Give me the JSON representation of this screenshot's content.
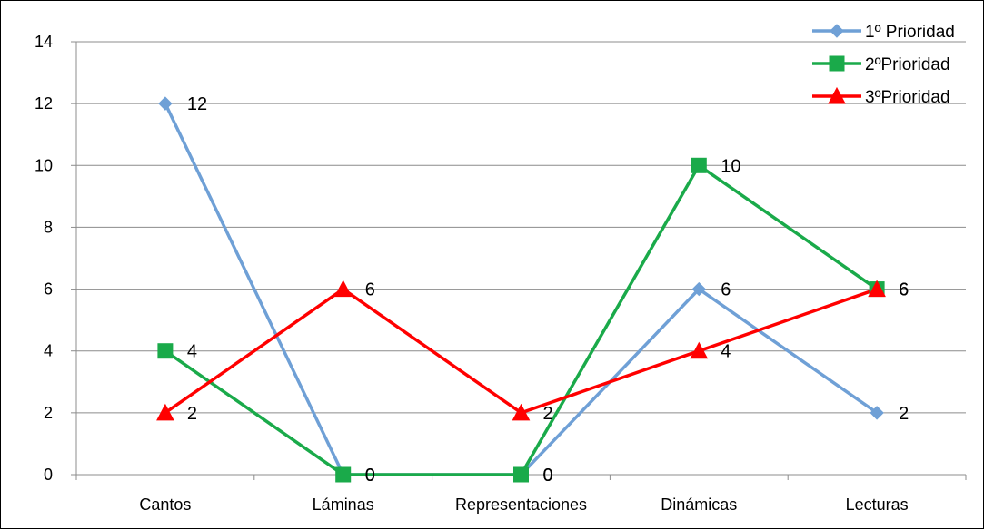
{
  "chart_data": {
    "type": "line",
    "title": "",
    "xlabel": "",
    "ylabel": "",
    "categories": [
      "Cantos",
      "Láminas",
      "Representaciones",
      "Dinámicas",
      "Lecturas"
    ],
    "ylim": [
      0,
      14
    ],
    "yticks": [
      0,
      2,
      4,
      6,
      8,
      10,
      12,
      14
    ],
    "grid": true,
    "legend_position": "top-right",
    "data_labels": true,
    "series": [
      {
        "name": "1º Prioridad",
        "values": [
          12,
          0,
          0,
          6,
          2
        ],
        "color": "#6fa0d6",
        "marker": "diamond"
      },
      {
        "name": "2ºPrioridad",
        "values": [
          4,
          0,
          0,
          10,
          6
        ],
        "color": "#1aaa4a",
        "marker": "square"
      },
      {
        "name": "3ºPrioridad",
        "values": [
          2,
          6,
          2,
          4,
          6
        ],
        "color": "#ff0000",
        "marker": "triangle"
      }
    ]
  }
}
